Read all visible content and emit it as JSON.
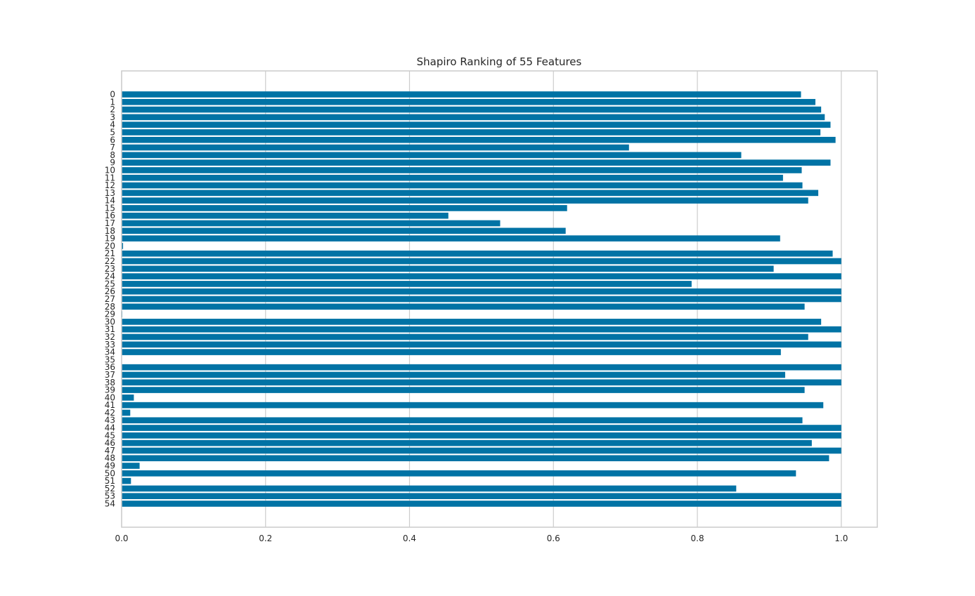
{
  "chart_data": {
    "type": "bar",
    "orientation": "horizontal",
    "title": "Shapiro Ranking of 55 Features",
    "xlabel": "",
    "ylabel": "",
    "xlim": [
      0,
      1.05
    ],
    "xticks": [
      "0.0",
      "0.2",
      "0.4",
      "0.6",
      "0.8",
      "1.0"
    ],
    "xtick_values": [
      0.0,
      0.2,
      0.4,
      0.6,
      0.8,
      1.0
    ],
    "grid": true,
    "bar_color": "#0173a5",
    "grid_color": "#cccccc",
    "spine_color": "#cccccc",
    "categories": [
      "0",
      "1",
      "2",
      "3",
      "4",
      "5",
      "6",
      "7",
      "8",
      "9",
      "10",
      "11",
      "12",
      "13",
      "14",
      "15",
      "16",
      "17",
      "18",
      "19",
      "20",
      "21",
      "22",
      "23",
      "24",
      "25",
      "26",
      "27",
      "28",
      "29",
      "30",
      "31",
      "32",
      "33",
      "34",
      "35",
      "36",
      "37",
      "38",
      "39",
      "40",
      "41",
      "42",
      "43",
      "44",
      "45",
      "46",
      "47",
      "48",
      "49",
      "50",
      "51",
      "52",
      "53",
      "54"
    ],
    "values": [
      0.944,
      0.964,
      0.972,
      0.977,
      0.985,
      0.971,
      0.992,
      0.705,
      0.861,
      0.985,
      0.945,
      0.919,
      0.946,
      0.968,
      0.954,
      0.619,
      0.454,
      0.526,
      0.617,
      0.915,
      0.002,
      0.988,
      1.0,
      0.906,
      1.0,
      0.792,
      1.0,
      1.0,
      0.949,
      0.001,
      0.972,
      1.0,
      0.954,
      1.0,
      0.916,
      0.0,
      1.0,
      0.922,
      1.0,
      0.949,
      0.017,
      0.975,
      0.012,
      0.946,
      1.0,
      1.0,
      0.959,
      1.0,
      0.983,
      0.025,
      0.937,
      0.013,
      0.854,
      1.0,
      1.0
    ]
  }
}
